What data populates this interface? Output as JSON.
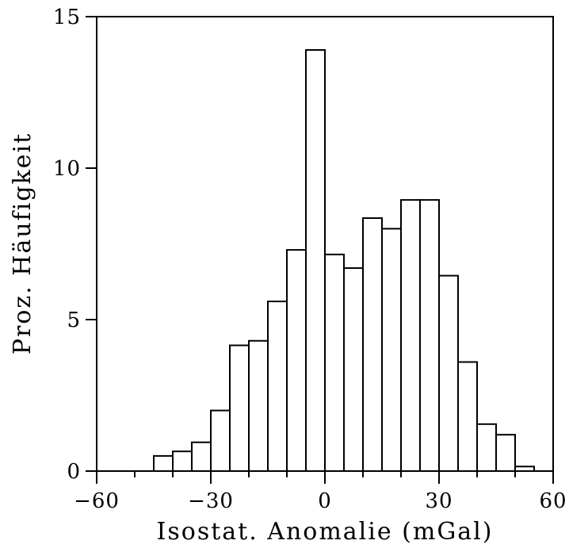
{
  "chart_data": {
    "type": "bar",
    "title": "",
    "xlabel": "Isostat. Anomalie (mGal)",
    "ylabel": "Proz. Häufigkeit",
    "xlim": [
      -60,
      60
    ],
    "ylim": [
      0,
      15
    ],
    "x_ticks": [
      "-60",
      "-30",
      "0",
      "30",
      "60"
    ],
    "y_ticks": [
      "0",
      "5",
      "10",
      "15"
    ],
    "bin_width": 5,
    "grid": false,
    "legend": "none",
    "bins": [
      {
        "from": -50,
        "to": -45,
        "value": 0
      },
      {
        "from": -45,
        "to": -40,
        "value": 0.5
      },
      {
        "from": -40,
        "to": -35,
        "value": 0.65
      },
      {
        "from": -35,
        "to": -30,
        "value": 0.95
      },
      {
        "from": -30,
        "to": -25,
        "value": 2.0
      },
      {
        "from": -25,
        "to": -20,
        "value": 4.15
      },
      {
        "from": -20,
        "to": -15,
        "value": 4.3
      },
      {
        "from": -15,
        "to": -10,
        "value": 5.6
      },
      {
        "from": -10,
        "to": -5,
        "value": 7.3
      },
      {
        "from": -5,
        "to": 0,
        "value": 13.9
      },
      {
        "from": 0,
        "to": 5,
        "value": 7.15
      },
      {
        "from": 5,
        "to": 10,
        "value": 6.7
      },
      {
        "from": 10,
        "to": 15,
        "value": 8.35
      },
      {
        "from": 15,
        "to": 20,
        "value": 8.0
      },
      {
        "from": 20,
        "to": 25,
        "value": 8.95
      },
      {
        "from": 25,
        "to": 30,
        "value": 8.95
      },
      {
        "from": 30,
        "to": 35,
        "value": 6.45
      },
      {
        "from": 35,
        "to": 40,
        "value": 3.6
      },
      {
        "from": 40,
        "to": 45,
        "value": 1.55
      },
      {
        "from": 45,
        "to": 50,
        "value": 1.2
      },
      {
        "from": 50,
        "to": 55,
        "value": 0.15
      }
    ]
  }
}
